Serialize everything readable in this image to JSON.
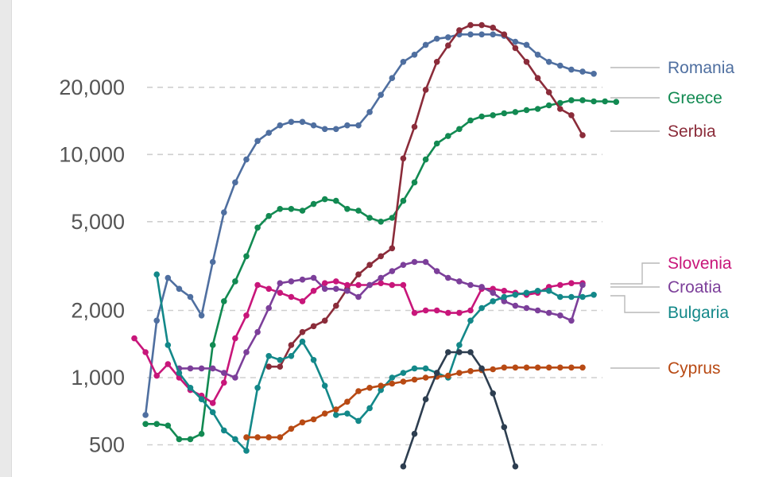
{
  "chart_data": {
    "type": "line",
    "title": "",
    "xlabel": "",
    "ylabel": "",
    "y_scale": "log",
    "ylim": [
      400,
      40000
    ],
    "y_ticks": [
      {
        "value": 500,
        "label": "500"
      },
      {
        "value": 1000,
        "label": "1,000"
      },
      {
        "value": 2000,
        "label": "2,000"
      },
      {
        "value": 5000,
        "label": "5,000"
      },
      {
        "value": 10000,
        "label": "10,000"
      },
      {
        "value": 20000,
        "label": "20,000"
      }
    ],
    "grid": true,
    "legend": "right",
    "x_start": 0,
    "x_end": 42,
    "series": [
      {
        "name": "Romania",
        "color": "#4f6fa0",
        "start": 1,
        "values": [
          680,
          1800,
          2800,
          2500,
          2300,
          1900,
          3300,
          5500,
          7500,
          9500,
          11500,
          12500,
          13500,
          14000,
          14000,
          13500,
          13000,
          13000,
          13500,
          13500,
          15500,
          18500,
          22000,
          26000,
          28000,
          31000,
          33000,
          33500,
          34500,
          34500,
          34500,
          34500,
          34000,
          32000,
          31000,
          28000,
          26000,
          25000,
          24000,
          23500,
          23000
        ]
      },
      {
        "name": "Greece",
        "color": "#128a52",
        "start": 1,
        "values": [
          620,
          620,
          610,
          530,
          530,
          560,
          1400,
          2200,
          2700,
          3500,
          4700,
          5300,
          5700,
          5700,
          5600,
          6000,
          6300,
          6200,
          5700,
          5600,
          5200,
          5000,
          5200,
          6200,
          7500,
          9500,
          11200,
          12100,
          13000,
          14200,
          14800,
          15000,
          15300,
          15500,
          15800,
          16000,
          16600,
          17000,
          17500,
          17500,
          17300,
          17300,
          17200
        ]
      },
      {
        "name": "Serbia",
        "color": "#8b2c3a",
        "start": 12,
        "values": [
          1120,
          1120,
          1400,
          1600,
          1700,
          1800,
          2100,
          2500,
          2900,
          3200,
          3500,
          3800,
          9600,
          13300,
          19500,
          26000,
          30800,
          36000,
          38000,
          38000,
          37000,
          34500,
          30000,
          26000,
          22000,
          19000,
          16000,
          15000,
          12200
        ]
      },
      {
        "name": "Slovenia",
        "color": "#c8167a",
        "start": 0,
        "values": [
          1500,
          1300,
          1020,
          1150,
          1000,
          880,
          830,
          770,
          950,
          1500,
          1900,
          2600,
          2500,
          2400,
          2300,
          2200,
          2450,
          2650,
          2700,
          2600,
          2600,
          2600,
          2650,
          2600,
          2600,
          1950,
          2000,
          2000,
          1950,
          1950,
          2000,
          2500,
          2500,
          2450,
          2400,
          2350,
          2400,
          2550,
          2600,
          2650,
          2650
        ]
      },
      {
        "name": "Croatia",
        "color": "#7c3f9a",
        "start": 4,
        "values": [
          1100,
          1100,
          1100,
          1100,
          1050,
          1000,
          1300,
          1600,
          2050,
          2650,
          2700,
          2750,
          2800,
          2500,
          2500,
          2450,
          2300,
          2600,
          2800,
          3000,
          3200,
          3300,
          3300,
          3000,
          2800,
          2700,
          2600,
          2550,
          2400,
          2200,
          2100,
          2050,
          2000,
          1950,
          1900,
          1800,
          2600
        ]
      },
      {
        "name": "Bulgaria",
        "color": "#138889",
        "start": 2,
        "values": [
          2900,
          1400,
          1050,
          900,
          800,
          700,
          580,
          530,
          470,
          900,
          1250,
          1200,
          1250,
          1450,
          1200,
          920,
          680,
          690,
          640,
          730,
          880,
          1000,
          1050,
          1100,
          1100,
          1050,
          1000,
          1400,
          1800,
          2050,
          2200,
          2300,
          2350,
          2400,
          2450,
          2450,
          2300,
          2300,
          2300,
          2350
        ]
      },
      {
        "name": "Cyprus",
        "color": "#b84a14",
        "start": 10,
        "values": [
          540,
          540,
          540,
          540,
          590,
          630,
          650,
          690,
          720,
          780,
          870,
          900,
          920,
          940,
          960,
          980,
          1000,
          1010,
          1020,
          1050,
          1070,
          1080,
          1090,
          1110,
          1110,
          1110,
          1110,
          1110,
          1110,
          1110,
          1110
        ]
      },
      {
        "name": "",
        "color": "#2d3e50",
        "start": 24,
        "values": [
          400,
          560,
          800,
          1050,
          1300,
          1300,
          1300,
          1100,
          850,
          600,
          400
        ]
      }
    ]
  }
}
